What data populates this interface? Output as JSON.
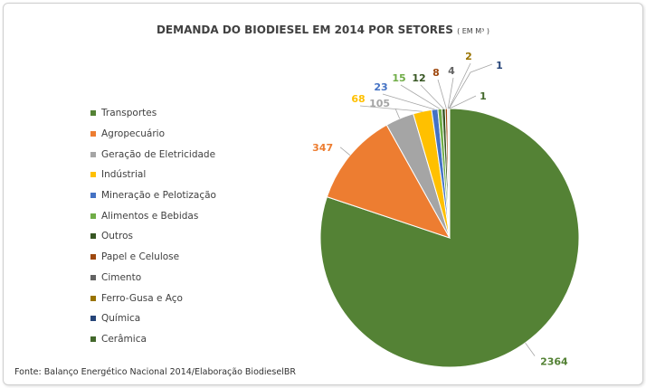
{
  "chart_data": {
    "type": "pie",
    "title": "DEMANDA DO BIODIESEL EM 2014 POR SETORES",
    "title_unit": "( EM M³ )",
    "source": "Fonte: Balanço Energético Nacional 2014/Elaboração BiodieselBR",
    "legend_position": "left",
    "slices": [
      {
        "label": "Transportes",
        "value": 2364,
        "color": "#548235"
      },
      {
        "label": "Agropecuário",
        "value": 347,
        "color": "#ED7D31"
      },
      {
        "label": "Geração de Eletricidade",
        "value": 105,
        "color": "#A5A5A5"
      },
      {
        "label": "Indústrial",
        "value": 68,
        "color": "#FFC000"
      },
      {
        "label": "Mineração e Pelotização",
        "value": 23,
        "color": "#4472C4"
      },
      {
        "label": "Alimentos e Bebidas",
        "value": 15,
        "color": "#70AD47"
      },
      {
        "label": "Outros",
        "value": 12,
        "color": "#375623"
      },
      {
        "label": "Papel e Celulose",
        "value": 8,
        "color": "#9E480E"
      },
      {
        "label": "Cimento",
        "value": 4,
        "color": "#636363"
      },
      {
        "label": "Ferro-Gusa e Aço",
        "value": 2,
        "color": "#997300"
      },
      {
        "label": "Química",
        "value": 1,
        "color": "#264478"
      },
      {
        "label": "Cerâmica",
        "value": 1,
        "color": "#43682B"
      }
    ]
  }
}
